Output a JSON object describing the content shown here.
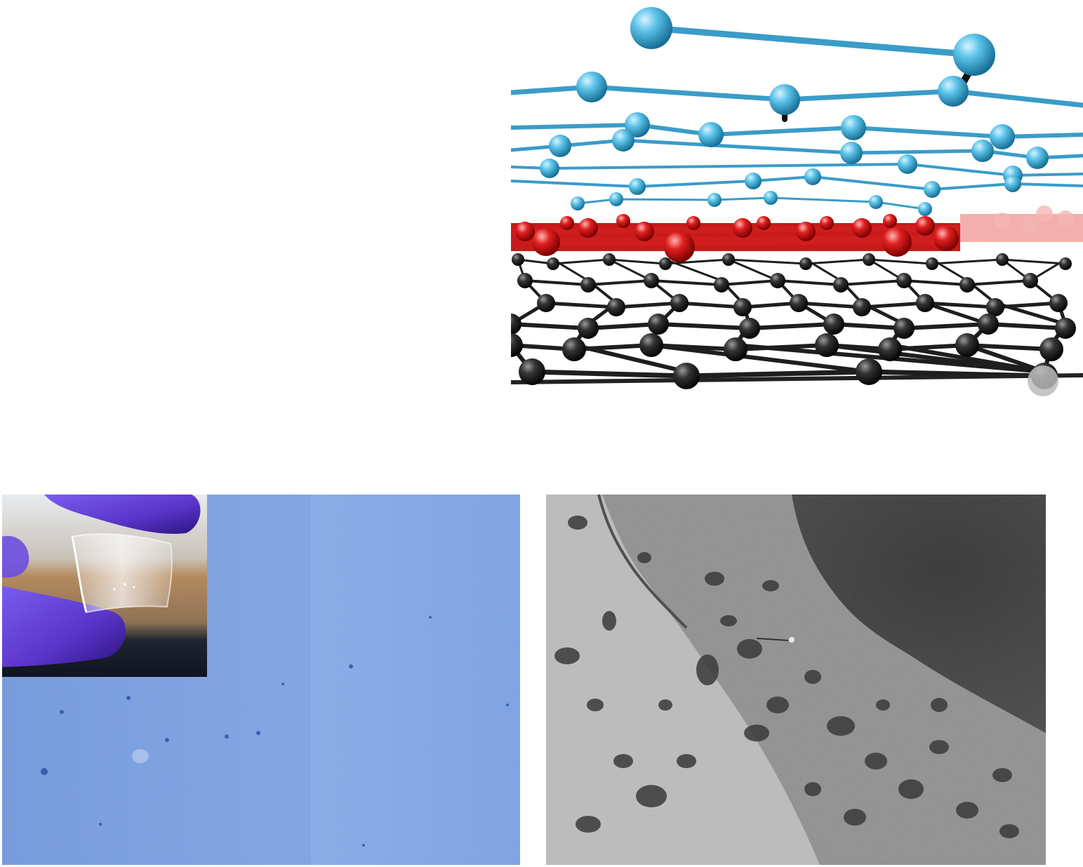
{
  "figure": {
    "panels": [
      {
        "id": "model",
        "content": "molecular-model-illustration"
      },
      {
        "id": "optical",
        "content": "optical-micrograph"
      },
      {
        "id": "sem",
        "content": "electron-micrograph"
      }
    ]
  },
  "colors": {
    "blue_atoms": "#4ab3dc",
    "blue_bonds": "#3a9cc8",
    "red_atoms": "#d81e1e",
    "black_atoms": "#2a2a2a",
    "optical_bg": "#7ca3e0",
    "glove": "#6a46d8",
    "sem_light": "#bdbdbd",
    "sem_mid": "#8f8f8f",
    "sem_dark": "#3a3a3a"
  }
}
